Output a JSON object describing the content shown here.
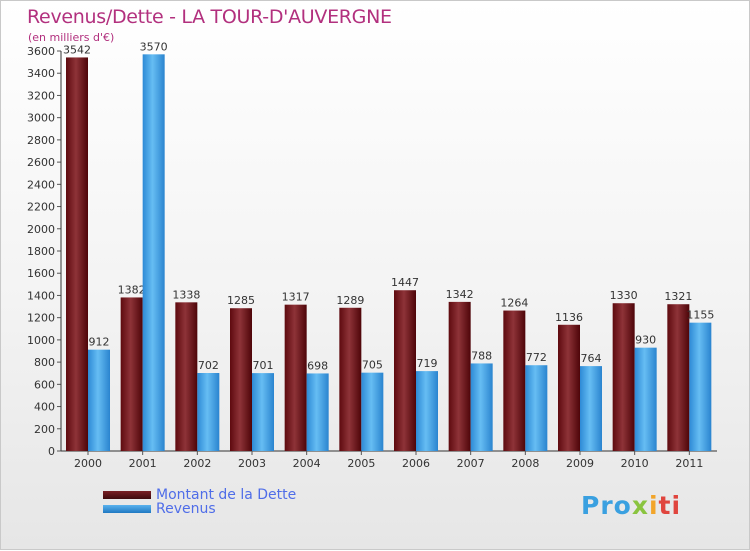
{
  "chart_data": {
    "type": "bar",
    "title": "Revenus/Dette - LA TOUR-D'AUVERGNE",
    "subtitle": "(en milliers d'€)",
    "categories": [
      "2000",
      "2001",
      "2002",
      "2003",
      "2004",
      "2005",
      "2006",
      "2007",
      "2008",
      "2009",
      "2010",
      "2011"
    ],
    "series": [
      {
        "name": "Montant de la Dette",
        "color": "#7a1f24",
        "values": [
          3542,
          1382,
          1338,
          1285,
          1317,
          1289,
          1447,
          1342,
          1264,
          1136,
          1330,
          1321
        ]
      },
      {
        "name": "Revenus",
        "color": "#3d9ee0",
        "values": [
          912,
          3570,
          702,
          701,
          698,
          705,
          719,
          788,
          772,
          764,
          930,
          1155
        ]
      }
    ],
    "ylim": [
      0,
      3600
    ],
    "ytick_step": 200,
    "grid": false,
    "xlabel": "",
    "ylabel": "",
    "legend_position": "bottom-left"
  },
  "logo": {
    "text": "Proxiti",
    "parts": [
      "Pro",
      "x",
      "i",
      "ti"
    ]
  }
}
